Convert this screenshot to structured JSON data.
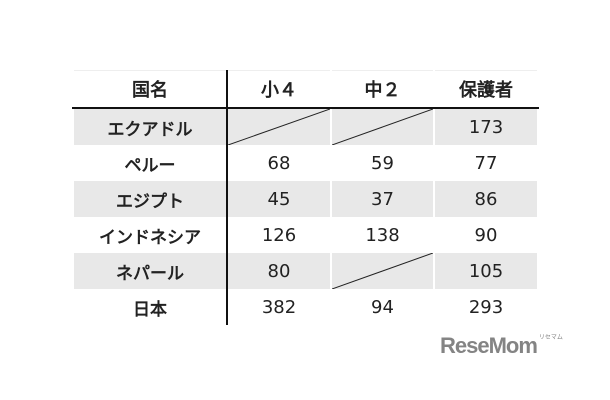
{
  "table": {
    "headers": [
      "国名",
      "小４",
      "中２",
      "保護者"
    ],
    "rows": [
      {
        "name": "エクアドル",
        "sho4": "",
        "chu2": "",
        "hogosha": "173",
        "slashed": [
          true,
          true,
          false
        ]
      },
      {
        "name": "ペルー",
        "sho4": "68",
        "chu2": "59",
        "hogosha": "77",
        "slashed": [
          false,
          false,
          false
        ]
      },
      {
        "name": "エジプト",
        "sho4": "45",
        "chu2": "37",
        "hogosha": "86",
        "slashed": [
          false,
          false,
          false
        ]
      },
      {
        "name": "インドネシア",
        "sho4": "126",
        "chu2": "138",
        "hogosha": "90",
        "slashed": [
          false,
          false,
          false
        ]
      },
      {
        "name": "ネパール",
        "sho4": "80",
        "chu2": "",
        "hogosha": "105",
        "slashed": [
          false,
          true,
          false
        ]
      },
      {
        "name": "日本",
        "sho4": "382",
        "chu2": "94",
        "hogosha": "293",
        "slashed": [
          false,
          false,
          false
        ]
      }
    ]
  },
  "watermark": {
    "text": "ReseMom",
    "sub": "リセマム"
  }
}
